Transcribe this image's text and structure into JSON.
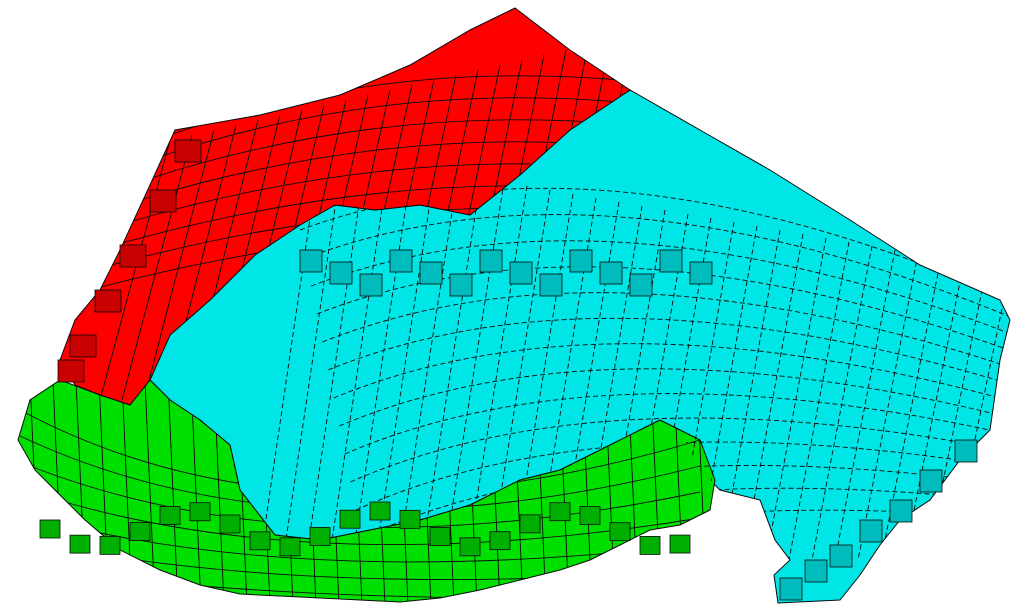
{
  "scene": {
    "background": "#ffffff",
    "edge_color": "#0a0a0a",
    "regions": [
      {
        "name": "region-red",
        "color": "#ff0000",
        "shade": "#d80000"
      },
      {
        "name": "region-cyan",
        "color": "#00e6e6",
        "shade": "#00c4c4"
      },
      {
        "name": "region-green",
        "color": "#00e000",
        "shade": "#00b800"
      }
    ]
  }
}
